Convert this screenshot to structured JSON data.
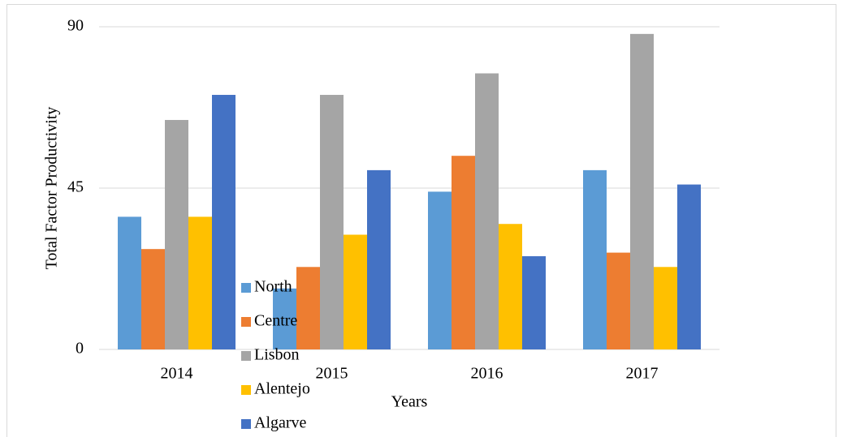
{
  "chart_data": {
    "type": "bar",
    "y_label": "Total Factor Productivity",
    "x_label": "Years",
    "categories": [
      "2014",
      "2015",
      "2016",
      "2017"
    ],
    "series": [
      {
        "name": "North",
        "color": "#5b9bd5",
        "values": [
          37,
          17,
          44,
          50
        ]
      },
      {
        "name": "Centre",
        "color": "#ed7d31",
        "values": [
          28,
          23,
          54,
          27
        ]
      },
      {
        "name": "Lisbon",
        "color": "#a5a5a5",
        "values": [
          64,
          71,
          77,
          88
        ]
      },
      {
        "name": "Alentejo",
        "color": "#ffc000",
        "values": [
          37,
          32,
          35,
          23
        ]
      },
      {
        "name": "Algarve",
        "color": "#4472c4",
        "values": [
          71,
          50,
          26,
          46
        ]
      }
    ],
    "ylim": [
      0,
      90
    ],
    "yticks": [
      0,
      45,
      90
    ],
    "grid": true
  }
}
